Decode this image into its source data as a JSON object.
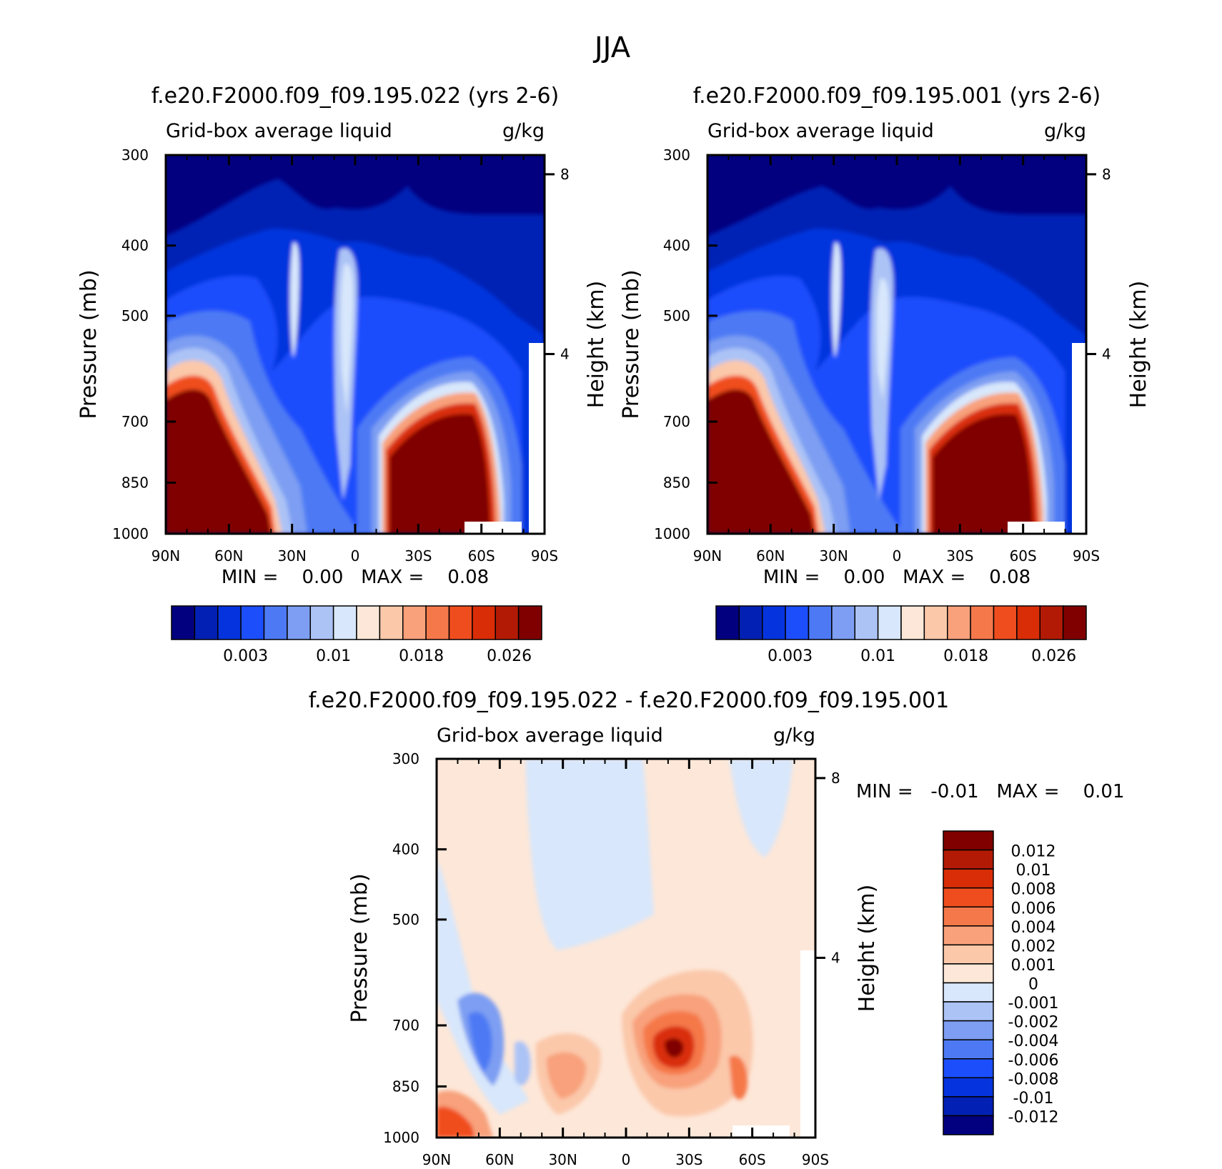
{
  "figure_title": "JJA",
  "panels": [
    {
      "id": "left",
      "case_title": "f.e20.F2000.f09_f09.195.022 (yrs 2-6)",
      "variable": "Grid-box average liquid",
      "units": "g/kg",
      "ylabel": "Pressure (mb)",
      "ylabel_right": "Height (km)",
      "minmax": "MIN =    0.00   MAX =    0.08"
    },
    {
      "id": "right",
      "case_title": "f.e20.F2000.f09_f09.195.001 (yrs 2-6)",
      "variable": "Grid-box average liquid",
      "units": "g/kg",
      "ylabel": "Pressure (mb)",
      "ylabel_right": "Height (km)",
      "minmax": "MIN =    0.00   MAX =    0.08"
    },
    {
      "id": "diff",
      "case_title": "f.e20.F2000.f09_f09.195.022 - f.e20.F2000.f09_f09.195.001",
      "variable": "Grid-box average liquid",
      "units": "g/kg",
      "ylabel": "Pressure (mb)",
      "ylabel_right": "Height (km)",
      "minmax": "MIN =   -0.01   MAX =    0.01"
    }
  ],
  "chart_data": [
    {
      "type": "contour",
      "panel": "left",
      "x_ticks": [
        "90N",
        "60N",
        "30N",
        "0",
        "30S",
        "60S",
        "90S"
      ],
      "y_ticks": [
        300,
        400,
        500,
        700,
        850,
        1000
      ],
      "y_right_ticks": [
        8,
        4
      ],
      "ylim": [
        1000,
        300
      ],
      "min": 0.0,
      "max": 0.08,
      "colorbar": {
        "labels": [
          "0.003",
          "0.01",
          "0.018",
          "0.026"
        ],
        "colors": [
          "#02007f",
          "#0220b4",
          "#0534de",
          "#1c4efc",
          "#4d7af4",
          "#7d9ef2",
          "#acc3f6",
          "#d8e7fb",
          "#fde7d8",
          "#fbc8aa",
          "#f8a17b",
          "#f5784a",
          "#f04d1e",
          "#d92d07",
          "#b31a05",
          "#800000"
        ]
      }
    },
    {
      "type": "contour",
      "panel": "right",
      "x_ticks": [
        "90N",
        "60N",
        "30N",
        "0",
        "30S",
        "60S",
        "90S"
      ],
      "y_ticks": [
        300,
        400,
        500,
        700,
        850,
        1000
      ],
      "y_right_ticks": [
        8,
        4
      ],
      "ylim": [
        1000,
        300
      ],
      "min": 0.0,
      "max": 0.08,
      "colorbar": {
        "labels": [
          "0.003",
          "0.01",
          "0.018",
          "0.026"
        ],
        "colors": [
          "#02007f",
          "#0220b4",
          "#0534de",
          "#1c4efc",
          "#4d7af4",
          "#7d9ef2",
          "#acc3f6",
          "#d8e7fb",
          "#fde7d8",
          "#fbc8aa",
          "#f8a17b",
          "#f5784a",
          "#f04d1e",
          "#d92d07",
          "#b31a05",
          "#800000"
        ]
      }
    },
    {
      "type": "contour",
      "panel": "diff",
      "x_ticks": [
        "90N",
        "60N",
        "30N",
        "0",
        "30S",
        "60S",
        "90S"
      ],
      "y_ticks": [
        300,
        400,
        500,
        700,
        850,
        1000
      ],
      "y_right_ticks": [
        8,
        4
      ],
      "ylim": [
        1000,
        300
      ],
      "min": -0.01,
      "max": 0.01,
      "colorbar": {
        "labels": [
          "0.012",
          "0.01",
          "0.008",
          "0.006",
          "0.004",
          "0.002",
          "0.001",
          "0",
          "-0.001",
          "-0.002",
          "-0.004",
          "-0.006",
          "-0.008",
          "-0.01",
          "-0.012"
        ],
        "colors": [
          "#800000",
          "#b31a05",
          "#d92d07",
          "#f04d1e",
          "#f5784a",
          "#f8a17b",
          "#fbc8aa",
          "#fde7d8",
          "#d8e7fb",
          "#acc3f6",
          "#7d9ef2",
          "#4d7af4",
          "#1c4efc",
          "#0534de",
          "#0220b4",
          "#02007f"
        ]
      }
    }
  ]
}
